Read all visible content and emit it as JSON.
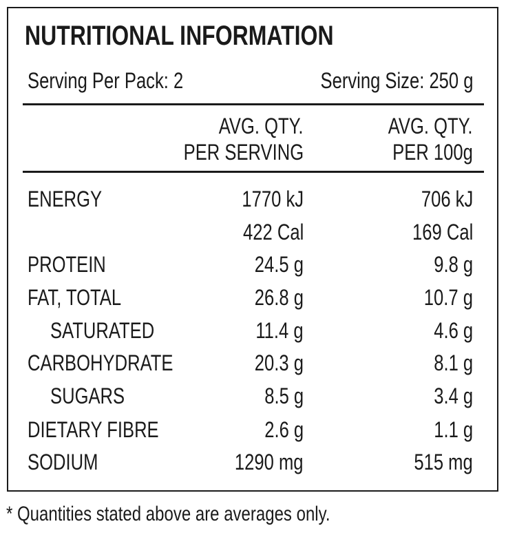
{
  "title": "NUTRITIONAL INFORMATION",
  "serving_per_pack": "Serving Per Pack: 2",
  "serving_size": "Serving Size: 250 g",
  "columns": [
    [
      "AVG. QTY.",
      "PER SERVING"
    ],
    [
      "AVG. QTY.",
      "PER 100g"
    ]
  ],
  "rows": [
    {
      "label": "ENERGY",
      "per_serving": [
        "1770 kJ",
        "422 Cal"
      ],
      "per_100g": [
        "706 kJ",
        "169 Cal"
      ]
    },
    {
      "label": "PROTEIN",
      "per_serving": "24.5 g",
      "per_100g": "9.8 g"
    },
    {
      "label": "FAT, TOTAL",
      "per_serving": "26.8 g",
      "per_100g": "10.7 g"
    },
    {
      "label": "SATURATED",
      "per_serving": "11.4 g",
      "per_100g": "4.6 g"
    },
    {
      "label": "CARBOHYDRATE",
      "per_serving": "20.3 g",
      "per_100g": "8.1 g"
    },
    {
      "label": "SUGARS",
      "per_serving": "8.5 g",
      "per_100g": "3.4 g"
    },
    {
      "label": "DIETARY FIBRE",
      "per_serving": "2.6 g",
      "per_100g": "1.1 g"
    },
    {
      "label": "SODIUM",
      "per_serving": "1290 mg",
      "per_100g": "515 mg"
    }
  ],
  "footnote": "* Quantities stated above are averages only."
}
